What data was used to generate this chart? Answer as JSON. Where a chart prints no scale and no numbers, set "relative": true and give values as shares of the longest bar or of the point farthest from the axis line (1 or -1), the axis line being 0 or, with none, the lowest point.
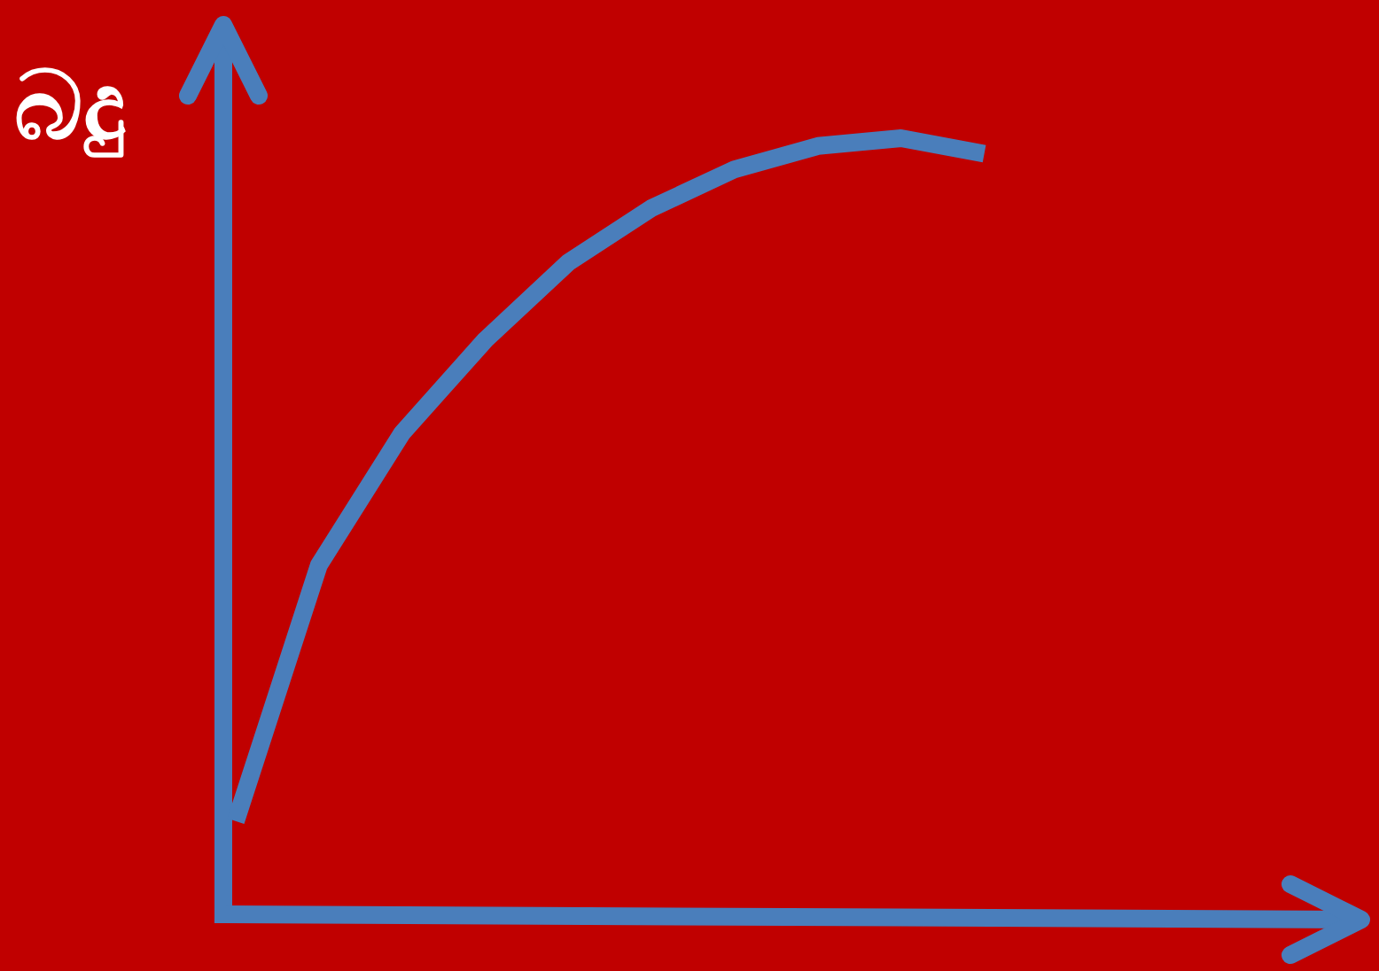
{
  "chart_data": {
    "type": "line",
    "relative": true,
    "ylabel": "බදු",
    "categories": [
      null,
      null,
      null,
      null,
      null,
      null,
      null,
      null,
      null,
      null,
      null,
      null,
      null,
      null
    ],
    "series": [
      {
        "color": "#4a7ebb",
        "values": [
          0.12,
          0.45,
          0.62,
          0.74,
          0.84,
          0.91,
          0.96,
          0.99,
          1,
          0.98,
          null,
          null,
          null,
          null
        ]
      }
    ]
  }
}
